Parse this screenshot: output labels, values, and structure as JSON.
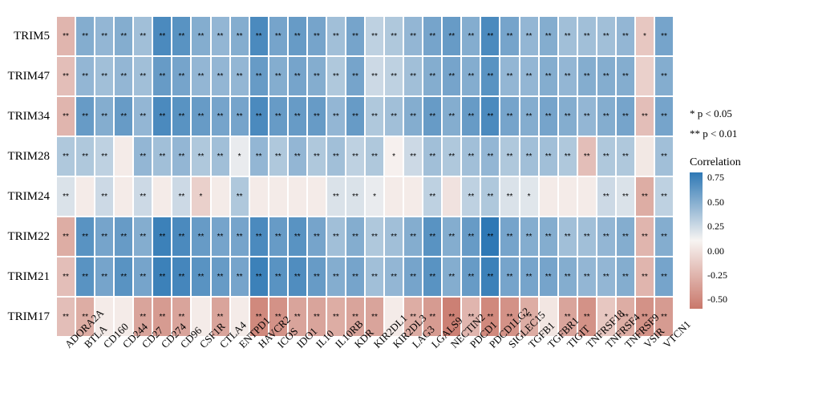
{
  "heatmap": {
    "type": "heatmap",
    "rows": [
      "TRIM5",
      "TRIM47",
      "TRIM34",
      "TRIM28",
      "TRIM24",
      "TRIM22",
      "TRIM21",
      "TRIM17"
    ],
    "cols": [
      "ADORA2A",
      "BTLA",
      "CD160",
      "CD244",
      "CD27",
      "CD274",
      "CD96",
      "CSF1R",
      "CTLA4",
      "ENTPD1",
      "HAVCR2",
      "ICOS",
      "IDO1",
      "IL10",
      "IL10RB",
      "KDR",
      "KIR2DL1",
      "KIR2DL3",
      "LAG3",
      "LGALS9",
      "NECTIN2",
      "PDCD1",
      "PDCD1LG2",
      "SIGLEC15",
      "TGFB1",
      "TGFBR1",
      "TIGIT",
      "TNFRSF18",
      "TNFRSF4",
      "TNFRSF9",
      "VSIR",
      "VTCN1"
    ],
    "values": [
      [
        -0.25,
        0.5,
        0.45,
        0.5,
        0.4,
        0.7,
        0.65,
        0.5,
        0.45,
        0.5,
        0.7,
        0.55,
        0.6,
        0.55,
        0.4,
        0.55,
        0.3,
        0.35,
        0.45,
        0.55,
        0.6,
        0.5,
        0.7,
        0.55,
        0.45,
        0.5,
        0.4,
        0.4,
        0.4,
        0.45,
        -0.15,
        0.55
      ],
      [
        -0.2,
        0.45,
        0.4,
        0.45,
        0.4,
        0.6,
        0.55,
        0.45,
        0.45,
        0.45,
        0.6,
        0.5,
        0.55,
        0.5,
        0.35,
        0.55,
        0.25,
        0.3,
        0.4,
        0.5,
        0.55,
        0.5,
        0.65,
        0.45,
        0.45,
        0.5,
        0.45,
        0.5,
        0.5,
        0.5,
        -0.1,
        0.5
      ],
      [
        -0.25,
        0.6,
        0.5,
        0.6,
        0.45,
        0.7,
        0.65,
        0.6,
        0.55,
        0.55,
        0.7,
        0.6,
        0.6,
        0.6,
        0.45,
        0.6,
        0.35,
        0.4,
        0.5,
        0.6,
        0.5,
        0.6,
        0.7,
        0.55,
        0.5,
        0.55,
        0.5,
        0.45,
        0.5,
        0.55,
        -0.2,
        0.55
      ],
      [
        0.35,
        0.35,
        0.3,
        0.05,
        0.45,
        0.4,
        0.45,
        0.35,
        0.4,
        0.15,
        0.45,
        0.35,
        0.45,
        0.35,
        0.4,
        0.3,
        0.35,
        0.08,
        0.25,
        0.4,
        0.35,
        0.4,
        0.45,
        0.35,
        0.4,
        0.4,
        0.35,
        -0.2,
        0.35,
        0.35,
        0.03,
        0.4
      ],
      [
        0.2,
        0.05,
        0.25,
        0.05,
        0.25,
        0.05,
        0.25,
        -0.1,
        0.05,
        0.35,
        0.05,
        0.05,
        0.05,
        0.05,
        0.2,
        0.2,
        0.15,
        0.05,
        0.05,
        0.3,
        0.0,
        0.3,
        0.35,
        0.2,
        0.18,
        0.05,
        0.05,
        0.05,
        0.25,
        0.2,
        -0.3,
        0.3
      ],
      [
        -0.3,
        0.65,
        0.55,
        0.6,
        0.5,
        0.75,
        0.7,
        0.6,
        0.55,
        0.55,
        0.7,
        0.6,
        0.65,
        0.55,
        0.4,
        0.5,
        0.35,
        0.4,
        0.5,
        0.65,
        0.5,
        0.6,
        0.8,
        0.55,
        0.5,
        0.5,
        0.4,
        0.4,
        0.45,
        0.5,
        -0.25,
        0.5
      ],
      [
        -0.2,
        0.65,
        0.55,
        0.65,
        0.55,
        0.75,
        0.72,
        0.65,
        0.6,
        0.55,
        0.75,
        0.65,
        0.68,
        0.6,
        0.5,
        0.55,
        0.4,
        0.45,
        0.55,
        0.65,
        0.5,
        0.6,
        0.75,
        0.55,
        0.55,
        0.55,
        0.5,
        0.45,
        0.45,
        0.5,
        -0.25,
        0.55
      ],
      [
        -0.2,
        -0.3,
        0.05,
        0.05,
        -0.35,
        -0.4,
        -0.35,
        0.05,
        -0.35,
        0.05,
        -0.5,
        -0.45,
        -0.35,
        -0.35,
        -0.3,
        -0.35,
        -0.35,
        0.05,
        -0.3,
        -0.4,
        -0.55,
        -0.25,
        -0.5,
        -0.45,
        -0.3,
        0.02,
        -0.35,
        -0.45,
        -0.15,
        -0.3,
        -0.45,
        -0.4
      ]
    ],
    "sig": [
      [
        2,
        2,
        2,
        2,
        2,
        2,
        2,
        2,
        2,
        2,
        2,
        2,
        2,
        2,
        2,
        2,
        2,
        2,
        2,
        2,
        2,
        2,
        2,
        2,
        2,
        2,
        2,
        2,
        2,
        2,
        1,
        2
      ],
      [
        2,
        2,
        2,
        2,
        2,
        2,
        2,
        2,
        2,
        2,
        2,
        2,
        2,
        2,
        2,
        2,
        2,
        2,
        2,
        2,
        2,
        2,
        2,
        2,
        2,
        2,
        2,
        2,
        2,
        2,
        0,
        2
      ],
      [
        2,
        2,
        2,
        2,
        2,
        2,
        2,
        2,
        2,
        2,
        2,
        2,
        2,
        2,
        2,
        2,
        2,
        2,
        2,
        2,
        2,
        2,
        2,
        2,
        2,
        2,
        2,
        2,
        2,
        2,
        2,
        2
      ],
      [
        2,
        2,
        2,
        0,
        2,
        2,
        2,
        2,
        2,
        1,
        2,
        2,
        2,
        2,
        2,
        2,
        2,
        1,
        2,
        2,
        2,
        2,
        2,
        2,
        2,
        2,
        2,
        2,
        2,
        2,
        0,
        2
      ],
      [
        2,
        0,
        2,
        0,
        2,
        0,
        2,
        1,
        0,
        2,
        0,
        0,
        0,
        0,
        2,
        2,
        1,
        0,
        0,
        2,
        0,
        2,
        2,
        2,
        1,
        0,
        0,
        0,
        2,
        2,
        2,
        2
      ],
      [
        2,
        2,
        2,
        2,
        2,
        2,
        2,
        2,
        2,
        2,
        2,
        2,
        2,
        2,
        2,
        2,
        2,
        2,
        2,
        2,
        2,
        2,
        2,
        2,
        2,
        2,
        2,
        2,
        2,
        2,
        2,
        2
      ],
      [
        2,
        2,
        2,
        2,
        2,
        2,
        2,
        2,
        2,
        2,
        2,
        2,
        2,
        2,
        2,
        2,
        2,
        2,
        2,
        2,
        2,
        2,
        2,
        2,
        2,
        2,
        2,
        2,
        2,
        2,
        2,
        2
      ],
      [
        2,
        2,
        0,
        0,
        2,
        2,
        2,
        0,
        2,
        0,
        2,
        2,
        2,
        2,
        2,
        2,
        2,
        0,
        2,
        2,
        2,
        2,
        2,
        2,
        2,
        0,
        2,
        2,
        1,
        2,
        2,
        2
      ]
    ],
    "border_color": "#ffffff",
    "label_fontsize": 15,
    "xlabel_fontsize": 13,
    "star_fontsize": 10
  },
  "legend": {
    "sig_lines": [
      "* p < 0.05",
      "** p < 0.01"
    ],
    "title": "Correlation",
    "ticks": [
      "0.75",
      "0.50",
      "0.25",
      "0.00",
      "-0.25",
      "-0.50"
    ],
    "tick_values": [
      0.75,
      0.5,
      0.25,
      0.0,
      -0.25,
      -0.5
    ],
    "gradient_stops": [
      {
        "pct": 0,
        "color": "#2e78b5"
      },
      {
        "pct": 50,
        "color": "#f7f4f2"
      },
      {
        "pct": 100,
        "color": "#c9776a"
      }
    ],
    "scale_min": -0.6,
    "scale_max": 0.8
  }
}
